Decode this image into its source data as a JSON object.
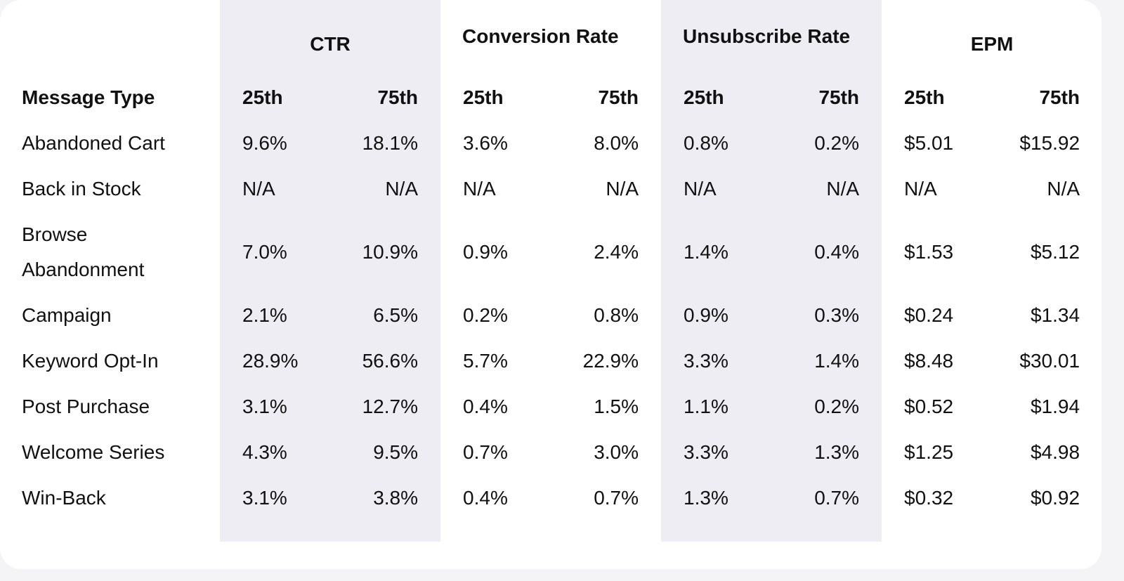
{
  "table": {
    "groups": [
      "CTR",
      "Conversion Rate",
      "Unsubscribe Rate",
      "EPM"
    ],
    "columns": [
      "Message Type",
      "25th",
      "75th",
      "25th",
      "75th",
      "25th",
      "75th",
      "25th",
      "75th"
    ],
    "rows": [
      [
        "Abandoned Cart",
        "9.6%",
        "18.1%",
        "3.6%",
        "8.0%",
        "0.8%",
        "0.2%",
        "$5.01",
        "$15.92"
      ],
      [
        "Back in Stock",
        "N/A",
        "N/A",
        "N/A",
        "N/A",
        "N/A",
        "N/A",
        "N/A",
        "N/A"
      ],
      [
        "Browse Abandonment",
        "7.0%",
        "10.9%",
        "0.9%",
        "2.4%",
        "1.4%",
        "0.4%",
        "$1.53",
        "$5.12"
      ],
      [
        "Campaign",
        "2.1%",
        "6.5%",
        "0.2%",
        "0.8%",
        "0.9%",
        "0.3%",
        "$0.24",
        "$1.34"
      ],
      [
        "Keyword Opt-In",
        "28.9%",
        "56.6%",
        "5.7%",
        "22.9%",
        "3.3%",
        "1.4%",
        "$8.48",
        "$30.01"
      ],
      [
        "Post Purchase",
        "3.1%",
        "12.7%",
        "0.4%",
        "1.5%",
        "1.1%",
        "0.2%",
        "$0.52",
        "$1.94"
      ],
      [
        "Welcome Series",
        "4.3%",
        "9.5%",
        "0.7%",
        "3.0%",
        "3.3%",
        "1.3%",
        "$1.25",
        "$4.98"
      ],
      [
        "Win-Back",
        "3.1%",
        "3.8%",
        "0.4%",
        "0.7%",
        "1.3%",
        "0.7%",
        "$0.32",
        "$0.92"
      ]
    ]
  }
}
